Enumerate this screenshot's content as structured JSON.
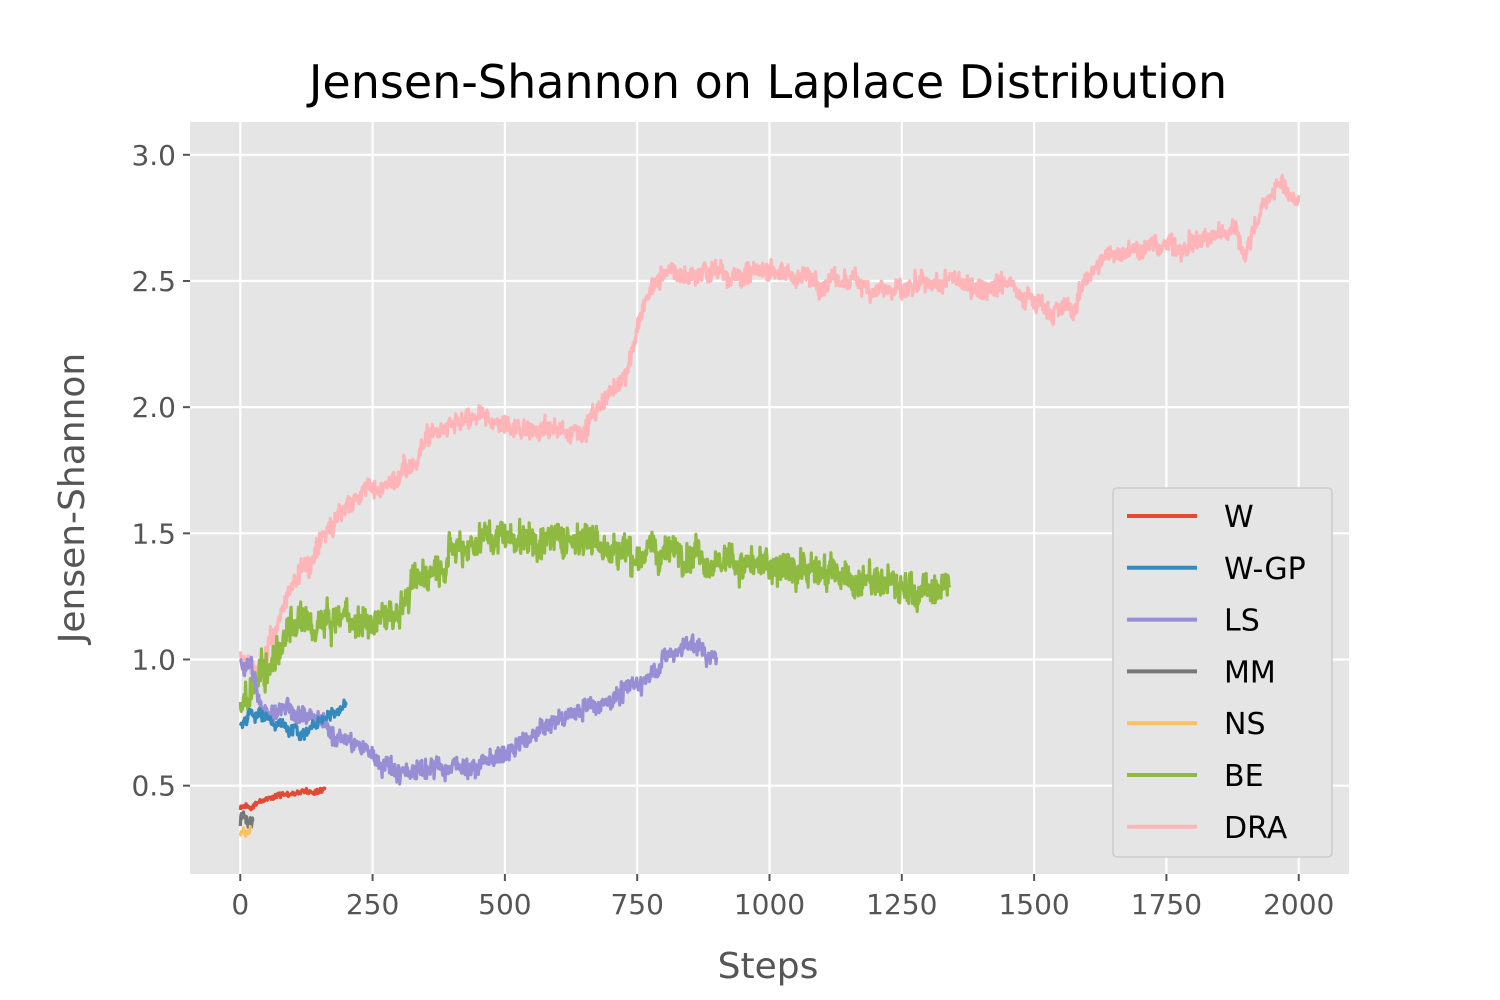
{
  "chart_data": {
    "type": "line",
    "title": "Jensen-Shannon on Laplace Distribution",
    "xlabel": "Steps",
    "ylabel": "Jensen-Shannon",
    "xlim": [
      -95,
      2095
    ],
    "ylim": [
      0.15,
      3.13
    ],
    "xticks": [
      0,
      250,
      500,
      750,
      1000,
      1250,
      1500,
      1750,
      2000
    ],
    "xtick_labels": [
      "0",
      "250",
      "500",
      "750",
      "1000",
      "1250",
      "1500",
      "1750",
      "2000"
    ],
    "yticks": [
      0.5,
      1.0,
      1.5,
      2.0,
      2.5,
      3.0
    ],
    "ytick_labels": [
      "0.5",
      "1.0",
      "1.5",
      "2.0",
      "2.5",
      "3.0"
    ],
    "grid": true,
    "legend_position": "lower-right",
    "series": [
      {
        "name": "W",
        "color": "#E24A33",
        "noise": 0.015,
        "x": [
          0,
          10,
          20,
          30,
          50,
          70,
          90,
          110,
          130,
          150,
          160
        ],
        "y": [
          0.41,
          0.42,
          0.41,
          0.43,
          0.45,
          0.46,
          0.47,
          0.47,
          0.48,
          0.49,
          0.49
        ]
      },
      {
        "name": "W-GP",
        "color": "#348ABD",
        "noise": 0.035,
        "x": [
          0,
          10,
          20,
          40,
          60,
          80,
          100,
          120,
          140,
          160,
          180,
          200
        ],
        "y": [
          0.76,
          0.74,
          0.8,
          0.78,
          0.76,
          0.74,
          0.72,
          0.71,
          0.74,
          0.77,
          0.8,
          0.82
        ]
      },
      {
        "name": "LS",
        "color": "#988ED5",
        "noise": 0.05,
        "x": [
          0,
          10,
          20,
          40,
          60,
          80,
          100,
          150,
          200,
          250,
          300,
          350,
          400,
          450,
          500,
          550,
          600,
          650,
          700,
          750,
          800,
          850,
          880,
          900
        ],
        "y": [
          1.02,
          0.95,
          1.0,
          0.78,
          0.8,
          0.84,
          0.8,
          0.74,
          0.68,
          0.62,
          0.56,
          0.57,
          0.58,
          0.58,
          0.62,
          0.69,
          0.76,
          0.81,
          0.85,
          0.9,
          1.0,
          1.07,
          1.02,
          1.0
        ]
      },
      {
        "name": "MM",
        "color": "#777777",
        "noise": 0.03,
        "x": [
          0,
          5,
          10,
          15,
          20,
          25
        ],
        "y": [
          0.36,
          0.38,
          0.39,
          0.36,
          0.38,
          0.37
        ]
      },
      {
        "name": "NS",
        "color": "#FBC15E",
        "noise": 0.02,
        "x": [
          0,
          5,
          10,
          15,
          20
        ],
        "y": [
          0.31,
          0.33,
          0.32,
          0.31,
          0.33
        ]
      },
      {
        "name": "BE",
        "color": "#8EBA42",
        "noise": 0.09,
        "x": [
          0,
          20,
          40,
          60,
          80,
          100,
          150,
          200,
          250,
          300,
          350,
          400,
          450,
          500,
          550,
          600,
          650,
          700,
          750,
          800,
          850,
          900,
          950,
          1000,
          1050,
          1100,
          1150,
          1200,
          1250,
          1300,
          1340
        ],
        "y": [
          0.8,
          0.88,
          0.92,
          0.98,
          1.08,
          1.12,
          1.13,
          1.16,
          1.15,
          1.2,
          1.35,
          1.45,
          1.48,
          1.5,
          1.48,
          1.47,
          1.5,
          1.45,
          1.42,
          1.42,
          1.45,
          1.4,
          1.38,
          1.35,
          1.38,
          1.35,
          1.32,
          1.3,
          1.28,
          1.26,
          1.3
        ]
      },
      {
        "name": "DRA",
        "color": "#FFB5B8",
        "noise": 0.055,
        "x": [
          0,
          20,
          40,
          60,
          80,
          100,
          150,
          200,
          250,
          300,
          330,
          350,
          400,
          450,
          500,
          550,
          600,
          650,
          700,
          730,
          750,
          770,
          800,
          850,
          900,
          950,
          1000,
          1050,
          1100,
          1150,
          1200,
          1250,
          1300,
          1350,
          1400,
          1450,
          1500,
          1550,
          1580,
          1600,
          1650,
          1700,
          1750,
          1800,
          1850,
          1880,
          1900,
          1920,
          1950,
          1970,
          2000
        ],
        "y": [
          1.0,
          0.98,
          0.95,
          1.08,
          1.2,
          1.3,
          1.45,
          1.62,
          1.68,
          1.72,
          1.78,
          1.88,
          1.92,
          1.95,
          1.93,
          1.92,
          1.9,
          1.92,
          2.05,
          2.15,
          2.3,
          2.45,
          2.53,
          2.52,
          2.55,
          2.52,
          2.55,
          2.52,
          2.5,
          2.5,
          2.48,
          2.45,
          2.48,
          2.5,
          2.48,
          2.5,
          2.42,
          2.38,
          2.4,
          2.52,
          2.62,
          2.63,
          2.64,
          2.65,
          2.68,
          2.72,
          2.6,
          2.75,
          2.85,
          2.88,
          2.8
        ]
      }
    ]
  },
  "style": {
    "plot_background": "#E5E5E5",
    "grid_color": "#FFFFFF",
    "text_color": "#555555"
  }
}
